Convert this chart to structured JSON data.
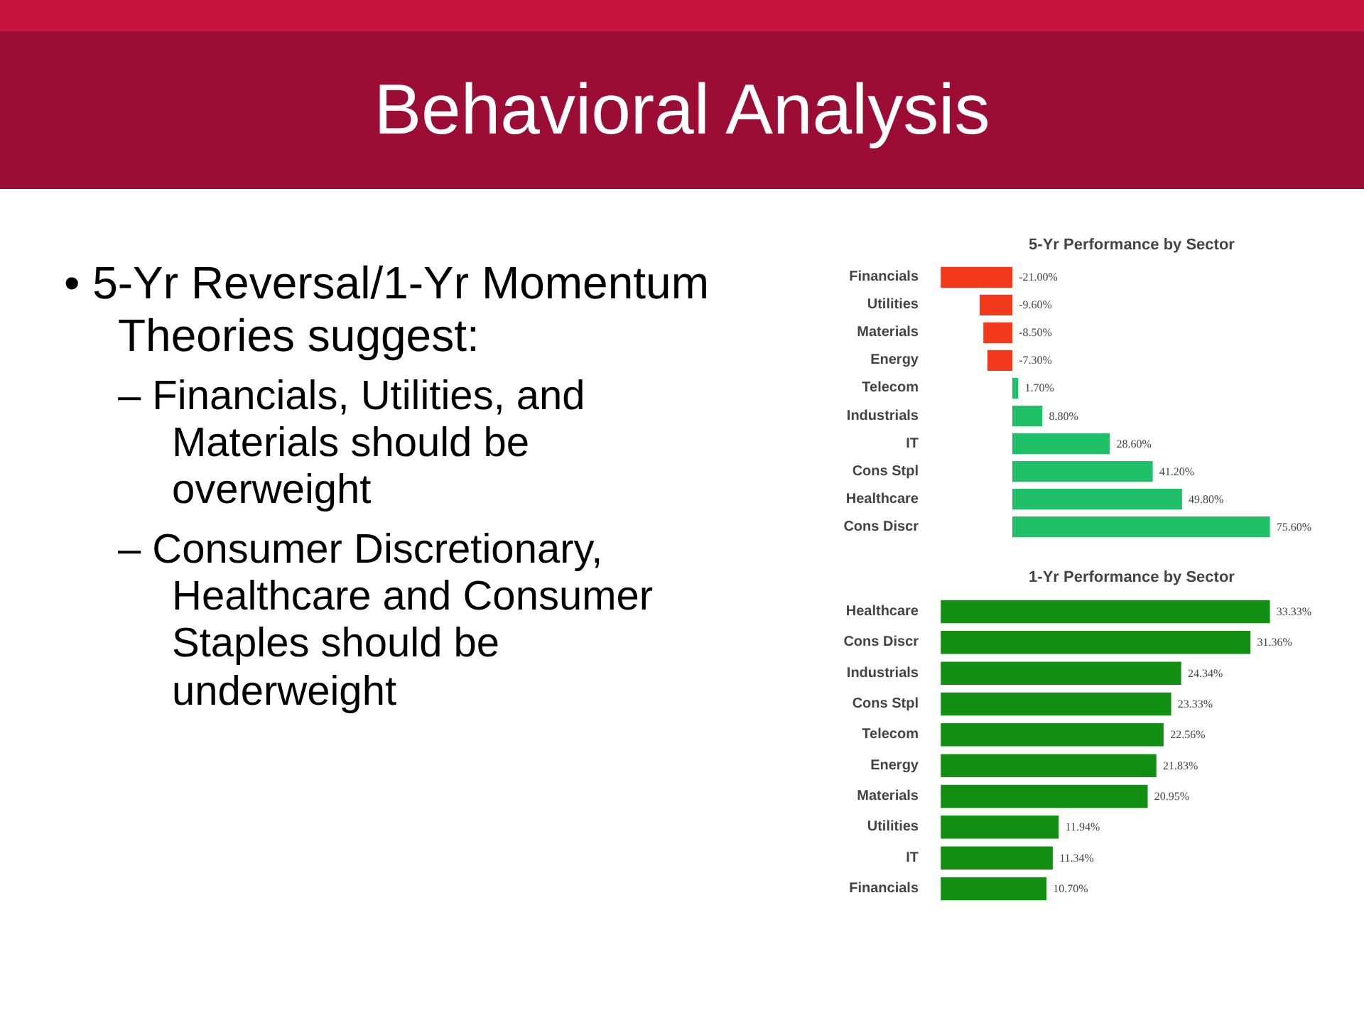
{
  "chart_data": [
    {
      "type": "other",
      "title": "Behavioral Analysis",
      "annotations": [
        "• 5-Yr Reversal/1-Yr Momentum Theories suggest:",
        "– Financials, Utilities, and Materials should be overweight",
        "– Consumer Discretionary, Healthcare and Consumer Staples should be underweight"
      ]
    },
    {
      "type": "bar",
      "orientation": "horizontal",
      "title": "5-Yr Performance by Sector",
      "categories": [
        "Financials",
        "Utilities",
        "Materials",
        "Energy",
        "Telecom",
        "Industrials",
        "IT",
        "Cons Stpl",
        "Healthcare",
        "Cons Discr"
      ],
      "values": [
        -21.0,
        -9.6,
        -8.5,
        -7.3,
        1.7,
        8.8,
        28.6,
        41.2,
        49.8,
        75.6
      ],
      "colors": [
        "#f2391c",
        "#f2391c",
        "#f2391c",
        "#f2391c",
        "#1fc068",
        "#1fc068",
        "#1fc068",
        "#1fc068",
        "#1fc068",
        "#1fc068"
      ],
      "value_labels": [
        "-21.00%",
        "-9.60%",
        "-8.50%",
        "-7.30%",
        "1.70%",
        "8.80%",
        "28.60%",
        "41.20%",
        "49.80%",
        "75.60%"
      ]
    },
    {
      "type": "bar",
      "orientation": "horizontal",
      "title": "1-Yr Performance by Sector",
      "categories": [
        "Healthcare",
        "Cons Discr",
        "Industrials",
        "Cons Stpl",
        "Telecom",
        "Energy",
        "Materials",
        "Utilities",
        "IT",
        "Financials"
      ],
      "values": [
        33.33,
        31.36,
        24.34,
        23.33,
        22.56,
        21.83,
        20.95,
        11.94,
        11.34,
        10.7
      ],
      "colors": [
        "#138f13",
        "#138f13",
        "#138f13",
        "#138f13",
        "#138f13",
        "#138f13",
        "#138f13",
        "#138f13",
        "#138f13",
        "#138f13"
      ],
      "value_labels": [
        "33.33%",
        "31.36%",
        "24.34%",
        "23.33%",
        "22.56%",
        "21.83%",
        "20.95%",
        "11.94%",
        "11.34%",
        "10.70%"
      ]
    }
  ]
}
